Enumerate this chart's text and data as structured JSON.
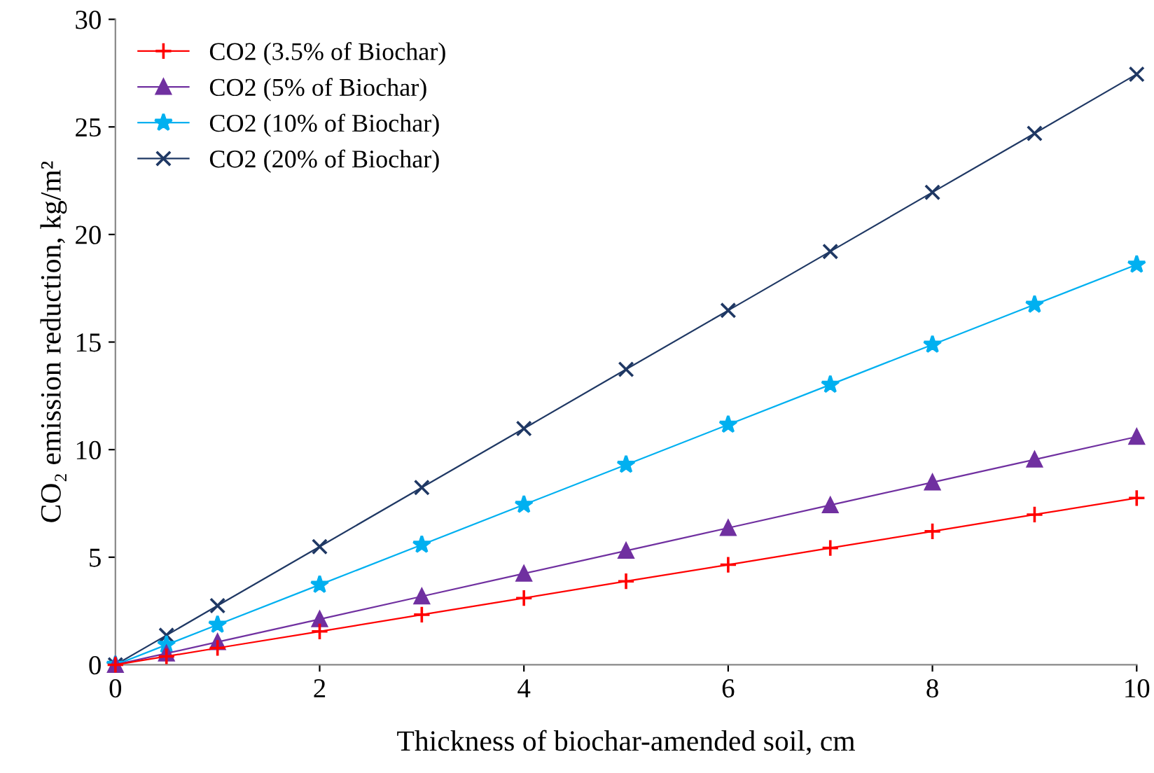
{
  "chart_data": {
    "type": "line",
    "xlabel": "Thickness of biochar-amended soil, cm",
    "ylabel": "CO₂ emission reduction, kg/m²",
    "x": [
      0,
      0.5,
      1,
      2,
      3,
      4,
      5,
      6,
      7,
      8,
      9,
      10
    ],
    "xlim": [
      0,
      10
    ],
    "xticks": [
      0,
      2,
      4,
      6,
      8,
      10
    ],
    "ylim": [
      0,
      30
    ],
    "yticks": [
      0,
      5,
      10,
      15,
      20,
      25,
      30
    ],
    "grid": false,
    "legend": "top left",
    "line_style": "solid",
    "series": [
      {
        "name": "CO2 (3.5% of Biochar)",
        "color": "#ff0000",
        "marker": "plus",
        "values": [
          0,
          0.39,
          0.78,
          1.55,
          2.33,
          3.1,
          3.88,
          4.65,
          5.43,
          6.2,
          6.98,
          7.75
        ]
      },
      {
        "name": "CO2 (5% of Biochar)",
        "color": "#7030a0",
        "marker": "triangle",
        "values": [
          0,
          0.53,
          1.06,
          2.12,
          3.18,
          4.24,
          5.3,
          6.36,
          7.42,
          8.48,
          9.54,
          10.6
        ]
      },
      {
        "name": "CO2 (10% of Biochar)",
        "color": "#00b0f0",
        "marker": "star",
        "values": [
          0,
          0.93,
          1.86,
          3.72,
          5.58,
          7.44,
          9.3,
          11.16,
          13.02,
          14.88,
          16.74,
          18.6
        ]
      },
      {
        "name": "CO2 (20% of Biochar)",
        "color": "#1f3864",
        "marker": "cross",
        "values": [
          0,
          1.37,
          2.75,
          5.49,
          8.24,
          10.98,
          13.73,
          16.47,
          19.21,
          21.96,
          24.7,
          27.45
        ]
      }
    ]
  }
}
